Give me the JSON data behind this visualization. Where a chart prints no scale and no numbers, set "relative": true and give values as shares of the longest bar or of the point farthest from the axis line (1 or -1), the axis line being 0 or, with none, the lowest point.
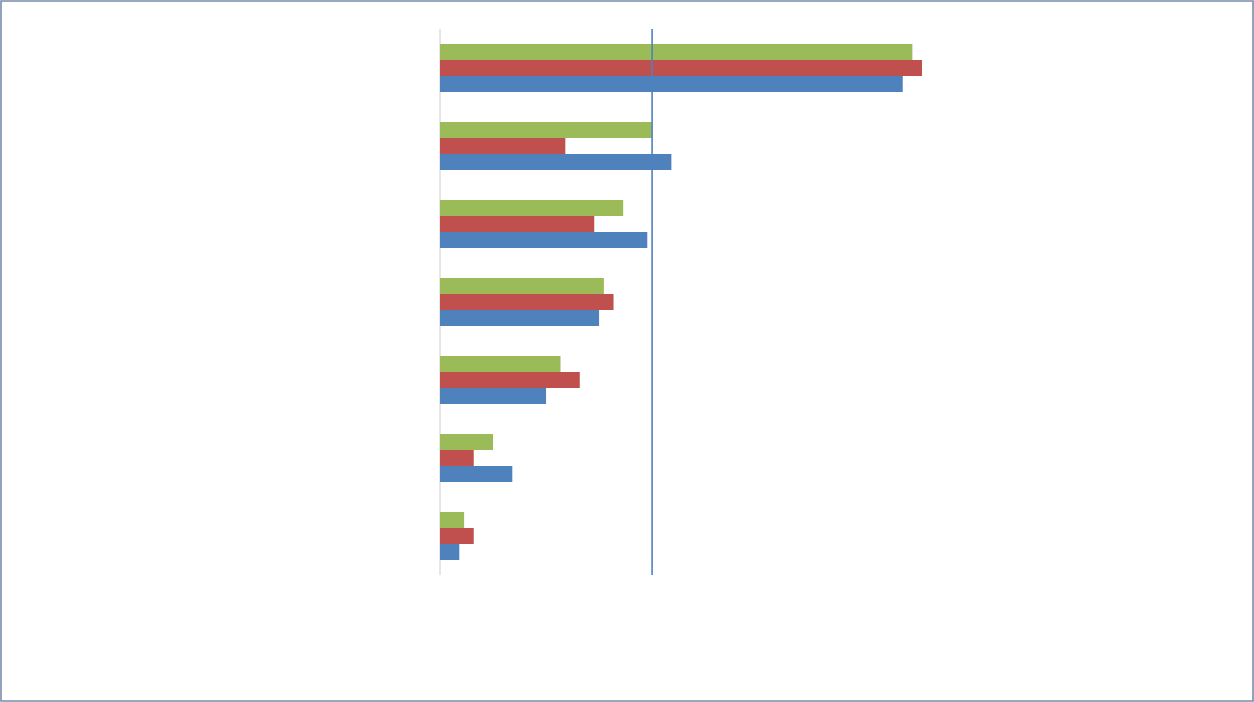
{
  "chart_data": {
    "type": "bar",
    "orientation": "horizontal",
    "relative": true,
    "categories": [
      null,
      null,
      null,
      null,
      null,
      null,
      null
    ],
    "series": [
      {
        "color": "#4f81bd",
        "values": [
          0.96,
          0.48,
          0.43,
          0.33,
          0.22,
          0.15,
          0.04
        ]
      },
      {
        "color": "#c0504d",
        "values": [
          1,
          0.26,
          0.32,
          0.36,
          0.29,
          0.07,
          0.07
        ]
      },
      {
        "color": "#9bbb59",
        "values": [
          0.98,
          0.44,
          0.38,
          0.34,
          0.25,
          0.11,
          0.05
        ]
      }
    ],
    "ref_lines": [
      {
        "axis": "x",
        "value": 0.44,
        "color": "#4f81bd"
      }
    ]
  }
}
